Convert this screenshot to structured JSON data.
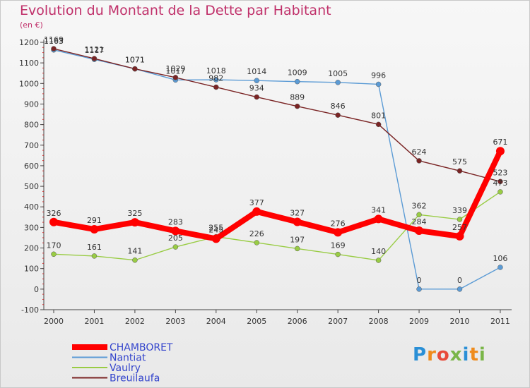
{
  "chart_data": {
    "type": "line",
    "title": "Evolution du Montant de la Dette par Habitant",
    "subtitle": "(en €)",
    "x": [
      "2000",
      "2001",
      "2002",
      "2003",
      "2004",
      "2005",
      "2006",
      "2007",
      "2008",
      "2009",
      "2010",
      "2011"
    ],
    "ylim": [
      -100,
      1200
    ],
    "yticks": [
      -100,
      0,
      100,
      200,
      300,
      400,
      500,
      600,
      700,
      800,
      900,
      1000,
      1100,
      1200
    ],
    "grid": false,
    "legend_position": "bottom-left",
    "series": [
      {
        "name": "CHAMBORET",
        "color": "#ff0000",
        "values": [
          326,
          291,
          325,
          283,
          245,
          377,
          327,
          276,
          341,
          284,
          257,
          671
        ]
      },
      {
        "name": "Nantiat",
        "color": "#5b9bd5",
        "values": [
          1163,
          1117,
          1071,
          1017,
          1018,
          1014,
          1009,
          1005,
          996,
          0,
          0,
          106
        ]
      },
      {
        "name": "Vaulry",
        "color": "#99cc44",
        "values": [
          170,
          161,
          141,
          205,
          255,
          226,
          197,
          169,
          140,
          362,
          339,
          473
        ]
      },
      {
        "name": "Breuilaufa",
        "color": "#7a2424",
        "values": [
          1169,
          1121,
          1071,
          1029,
          982,
          934,
          889,
          846,
          801,
          624,
          575,
          523
        ]
      }
    ]
  },
  "logo": {
    "text": "Proxiti"
  }
}
